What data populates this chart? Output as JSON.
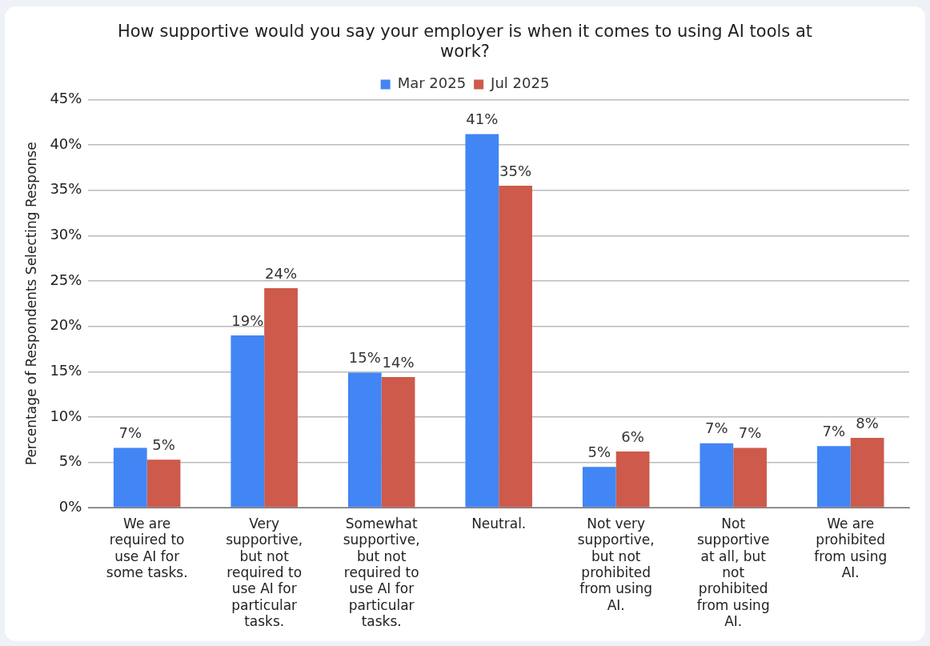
{
  "chart_data": {
    "type": "bar",
    "title": "How supportive would you say your employer is when it comes to using AI tools at work?",
    "ylabel": "Percentage of Respondents Selecting Response",
    "categories": [
      "We are required to use AI for some tasks.",
      "Very supportive, but not required to use AI for particular tasks.",
      "Somewhat supportive, but not required to use AI for particular tasks.",
      "Neutral.",
      "Not very supportive, but not prohibited from using AI.",
      "Not supportive at all, but not prohibited from using AI.",
      "We are prohibited from using AI."
    ],
    "series": [
      {
        "name": "Mar 2025",
        "color": "#4285f4",
        "values": [
          6.6,
          19.0,
          14.9,
          41.2,
          4.5,
          7.1,
          6.8
        ],
        "value_labels": [
          "7%",
          "19%",
          "15%",
          "41%",
          "5%",
          "7%",
          "7%"
        ]
      },
      {
        "name": "Jul 2025",
        "color": "#cd5a4a",
        "values": [
          5.3,
          24.2,
          14.4,
          35.5,
          6.2,
          6.6,
          7.7
        ],
        "value_labels": [
          "5%",
          "24%",
          "14%",
          "35%",
          "6%",
          "7%",
          "8%"
        ]
      }
    ],
    "ylim": [
      0,
      45
    ],
    "yticks": [
      {
        "value": 0,
        "label": "0%"
      },
      {
        "value": 5,
        "label": "5%"
      },
      {
        "value": 10,
        "label": "10%"
      },
      {
        "value": 15,
        "label": "15%"
      },
      {
        "value": 20,
        "label": "20%"
      },
      {
        "value": 25,
        "label": "25%"
      },
      {
        "value": 30,
        "label": "30%"
      },
      {
        "value": 35,
        "label": "35%"
      },
      {
        "value": 40,
        "label": "40%"
      },
      {
        "value": 45,
        "label": "45%"
      }
    ],
    "grid": "y",
    "legend": "top"
  }
}
